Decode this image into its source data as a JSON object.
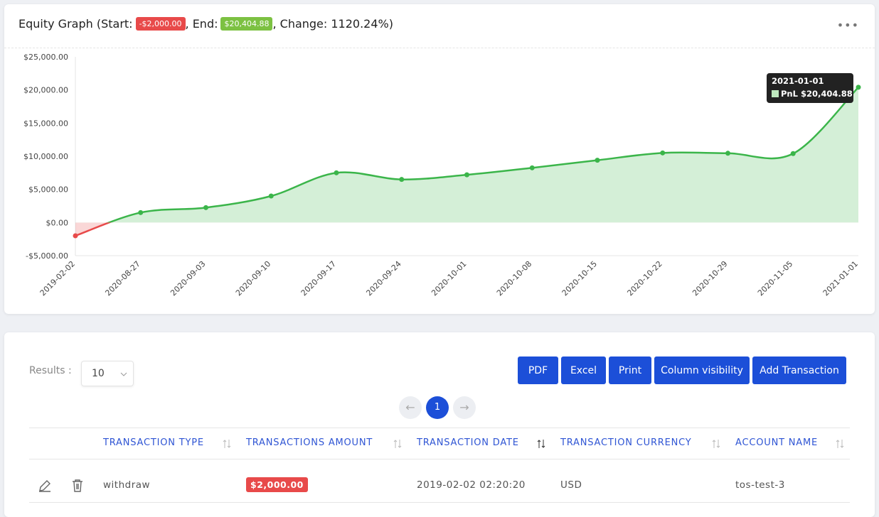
{
  "header": {
    "prefix": "Equity Graph (Start:",
    "start": "-$2,000.00",
    "mid": ", End:",
    "end": "$20,404.88",
    "suffix": ", Change: 1120.24%)"
  },
  "chart_data": {
    "type": "line",
    "categories": [
      "2019-02-02",
      "2020-08-27",
      "2020-09-03",
      "2020-09-10",
      "2020-09-17",
      "2020-09-24",
      "2020-10-01",
      "2020-10-08",
      "2020-10-15",
      "2020-10-22",
      "2020-10-29",
      "2020-11-05",
      "2021-01-01"
    ],
    "series": [
      {
        "name": "PnL",
        "color": "#3bb54a",
        "negative_color": "#e84a4a",
        "values": [
          -2000,
          1500,
          2250,
          4000,
          7500,
          6500,
          7200,
          8250,
          9400,
          10500,
          10450,
          10400,
          20404.88
        ]
      }
    ],
    "ylim": [
      -5000,
      25000
    ],
    "yticks": [
      {
        "value": -5000,
        "label": "-$5,000.00"
      },
      {
        "value": 0,
        "label": "$0.00"
      },
      {
        "value": 5000,
        "label": "$5,000.00"
      },
      {
        "value": 10000,
        "label": "$10,000.00"
      },
      {
        "value": 15000,
        "label": "$15,000.00"
      },
      {
        "value": 20000,
        "label": "$20,000.00"
      },
      {
        "value": 25000,
        "label": "$25,000.00"
      }
    ],
    "tooltip": {
      "title": "2021-01-01",
      "text": "PnL $20,404.88"
    }
  },
  "controls": {
    "results_label": "Results :",
    "page_size": "10",
    "page": "1",
    "buttons": [
      "PDF",
      "Excel",
      "Print",
      "Column visibility",
      "Add Transaction"
    ]
  },
  "table": {
    "columns": [
      "TRANSACTION TYPE",
      "TRANSACTIONS AMOUNT",
      "TRANSACTION DATE",
      "TRANSACTION CURRENCY",
      "ACCOUNT NAME"
    ],
    "rows": [
      [
        "withdraw",
        "$2,000.00",
        "2019-02-02 02:20:20",
        "USD",
        "tos-test-3"
      ]
    ]
  }
}
